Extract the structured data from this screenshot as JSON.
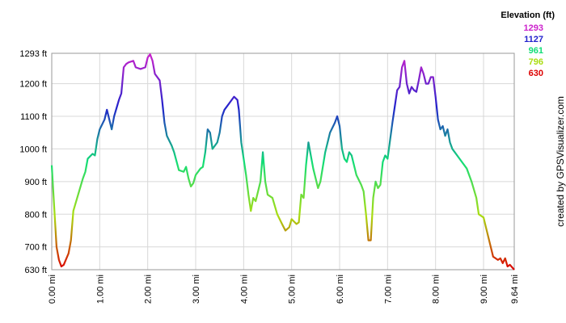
{
  "chart_data": {
    "type": "line",
    "credit": "created by GPSVisualizer.com",
    "legend": {
      "title": "Elevation (ft)",
      "position": "top-right",
      "entries": [
        {
          "value": 1293,
          "color": "#cc22cc"
        },
        {
          "value": 1127,
          "color": "#2222cc"
        },
        {
          "value": 961,
          "color": "#11dd77"
        },
        {
          "value": 796,
          "color": "#aadd11"
        },
        {
          "value": 630,
          "color": "#dd0000"
        }
      ]
    },
    "grid": true,
    "xlim": [
      0,
      9.64
    ],
    "ylim": [
      630,
      1293
    ],
    "xticks": [
      {
        "value": 0,
        "label": "0.00 mi"
      },
      {
        "value": 1,
        "label": "1.00 mi"
      },
      {
        "value": 2,
        "label": "2.00 mi"
      },
      {
        "value": 3,
        "label": "3.00 mi"
      },
      {
        "value": 4,
        "label": "4.00 mi"
      },
      {
        "value": 5,
        "label": "5.00 mi"
      },
      {
        "value": 6,
        "label": "6.00 mi"
      },
      {
        "value": 7,
        "label": "7.00 mi"
      },
      {
        "value": 8,
        "label": "8.00 mi"
      },
      {
        "value": 9,
        "label": "9.00 mi"
      },
      {
        "value": 9.64,
        "label": "9.64 mi"
      }
    ],
    "yticks": [
      {
        "value": 630,
        "label": "630 ft"
      },
      {
        "value": 700,
        "label": "700 ft"
      },
      {
        "value": 800,
        "label": "800 ft"
      },
      {
        "value": 900,
        "label": "900 ft"
      },
      {
        "value": 1000,
        "label": "1000 ft"
      },
      {
        "value": 1100,
        "label": "1100 ft"
      },
      {
        "value": 1200,
        "label": "1200 ft"
      },
      {
        "value": 1293,
        "label": "1293 ft"
      }
    ],
    "x": [
      0,
      0.1,
      0.15,
      0.2,
      0.25,
      0.35,
      0.4,
      0.45,
      0.55,
      0.65,
      0.7,
      0.75,
      0.85,
      0.9,
      0.95,
      1.0,
      1.05,
      1.1,
      1.15,
      1.2,
      1.25,
      1.3,
      1.4,
      1.45,
      1.5,
      1.55,
      1.6,
      1.7,
      1.75,
      1.85,
      1.95,
      2.0,
      2.05,
      2.1,
      2.15,
      2.25,
      2.3,
      2.35,
      2.4,
      2.5,
      2.55,
      2.65,
      2.75,
      2.8,
      2.85,
      2.9,
      2.95,
      3.0,
      3.1,
      3.15,
      3.2,
      3.25,
      3.3,
      3.35,
      3.45,
      3.5,
      3.55,
      3.6,
      3.7,
      3.8,
      3.87,
      3.9,
      3.95,
      4.05,
      4.1,
      4.15,
      4.2,
      4.25,
      4.35,
      4.4,
      4.45,
      4.5,
      4.6,
      4.7,
      4.8,
      4.87,
      4.95,
      5.0,
      5.1,
      5.15,
      5.2,
      5.25,
      5.3,
      5.35,
      5.4,
      5.45,
      5.5,
      5.55,
      5.6,
      5.7,
      5.8,
      5.9,
      5.95,
      6.0,
      6.05,
      6.1,
      6.15,
      6.2,
      6.25,
      6.3,
      6.35,
      6.45,
      6.5,
      6.55,
      6.6,
      6.65,
      6.7,
      6.75,
      6.8,
      6.85,
      6.9,
      6.95,
      7.0,
      7.1,
      7.2,
      7.25,
      7.3,
      7.35,
      7.4,
      7.45,
      7.5,
      7.55,
      7.6,
      7.65,
      7.7,
      7.75,
      7.8,
      7.85,
      7.9,
      7.95,
      8.0,
      8.05,
      8.1,
      8.15,
      8.2,
      8.25,
      8.3,
      8.35,
      8.45,
      8.55,
      8.65,
      8.75,
      8.85,
      8.9,
      9.0,
      9.05,
      9.15,
      9.2,
      9.3,
      9.35,
      9.4,
      9.45,
      9.5,
      9.55,
      9.64
    ],
    "series": [
      {
        "name": "Elevation",
        "values": [
          950,
          700,
          660,
          640,
          645,
          680,
          720,
          810,
          860,
          910,
          930,
          970,
          985,
          980,
          1030,
          1060,
          1075,
          1090,
          1120,
          1090,
          1060,
          1100,
          1150,
          1170,
          1250,
          1260,
          1265,
          1270,
          1250,
          1245,
          1250,
          1280,
          1290,
          1270,
          1230,
          1210,
          1150,
          1080,
          1040,
          1010,
          990,
          935,
          930,
          945,
          910,
          885,
          895,
          920,
          940,
          945,
          990,
          1060,
          1050,
          1000,
          1020,
          1050,
          1100,
          1120,
          1140,
          1160,
          1150,
          1120,
          1020,
          920,
          860,
          810,
          850,
          840,
          900,
          990,
          900,
          860,
          850,
          800,
          770,
          750,
          760,
          785,
          770,
          775,
          860,
          850,
          950,
          1020,
          980,
          940,
          910,
          880,
          900,
          990,
          1050,
          1080,
          1100,
          1070,
          1000,
          970,
          960,
          990,
          980,
          950,
          920,
          890,
          870,
          800,
          720,
          720,
          850,
          900,
          880,
          890,
          960,
          980,
          970,
          1080,
          1180,
          1190,
          1250,
          1270,
          1200,
          1170,
          1190,
          1180,
          1175,
          1210,
          1250,
          1230,
          1200,
          1200,
          1220,
          1220,
          1160,
          1090,
          1060,
          1070,
          1040,
          1060,
          1020,
          1000,
          980,
          960,
          940,
          900,
          850,
          800,
          790,
          760,
          700,
          670,
          660,
          665,
          650,
          665,
          640,
          645,
          630
        ]
      }
    ]
  }
}
